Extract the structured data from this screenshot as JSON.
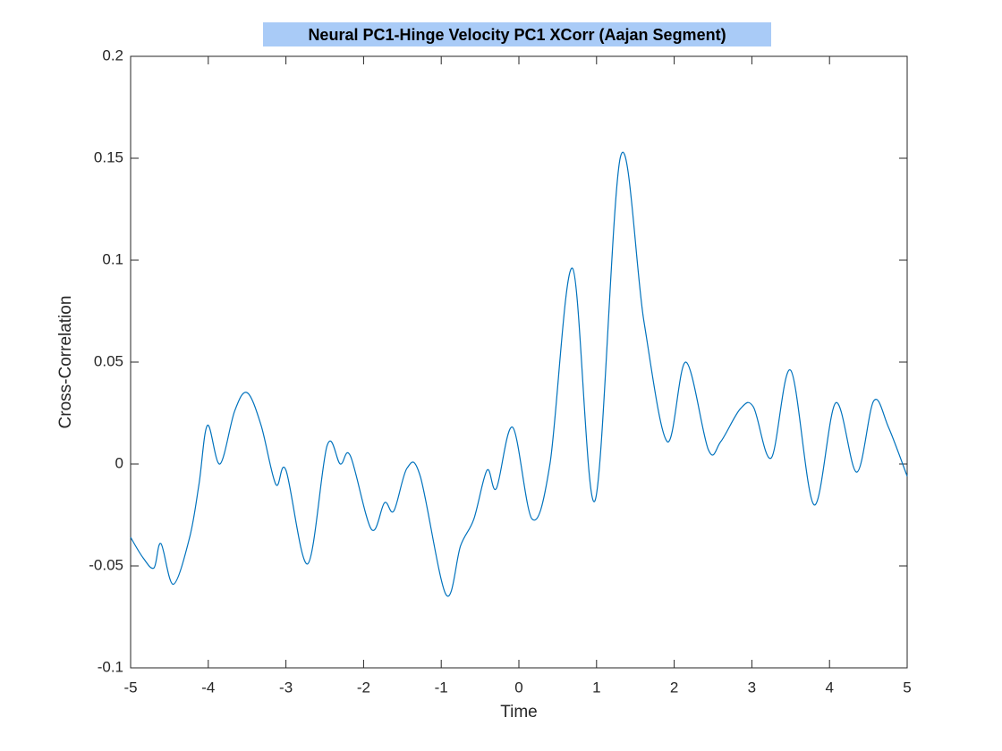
{
  "chart_data": {
    "type": "line",
    "title": "Neural PC1-Hinge Velocity PC1 XCorr (Aajan Segment)",
    "x_label": "Time",
    "y_label": "Cross-Correlation",
    "xlim": [
      -5,
      5
    ],
    "ylim": [
      -0.1,
      0.2
    ],
    "xticks": [
      -5,
      -4,
      -3,
      -2,
      -1,
      0,
      1,
      2,
      3,
      4,
      5
    ],
    "yticks": [
      -0.1,
      -0.05,
      0,
      0.05,
      0.1,
      0.15,
      0.2
    ],
    "grid": false,
    "series": [
      {
        "name": "Cross-Correlation",
        "color": "#0072bd",
        "x": [
          -5,
          -4.84,
          -4.7,
          -4.61,
          -4.45,
          -4.24,
          -4.12,
          -4.01,
          -3.85,
          -3.66,
          -3.5,
          -3.32,
          -3.13,
          -3,
          -2.72,
          -2.47,
          -2.3,
          -2.17,
          -1.9,
          -1.73,
          -1.61,
          -1.44,
          -1.27,
          -0.94,
          -0.75,
          -0.58,
          -0.41,
          -0.29,
          -0.08,
          0.17,
          0.4,
          0.69,
          0.98,
          1.31,
          1.61,
          1.91,
          2.15,
          2.44,
          2.6,
          2.85,
          3.02,
          3.25,
          3.5,
          3.8,
          4.08,
          4.35,
          4.57,
          4.76,
          5
        ],
        "values": [
          -0.036,
          -0.046,
          -0.051,
          -0.039,
          -0.059,
          -0.036,
          -0.01,
          0.019,
          0.0,
          0.026,
          0.035,
          0.019,
          -0.01,
          -0.003,
          -0.049,
          0.009,
          0.0,
          0.004,
          -0.032,
          -0.019,
          -0.023,
          -0.002,
          -0.006,
          -0.064,
          -0.04,
          -0.027,
          -0.003,
          -0.012,
          0.018,
          -0.027,
          0.0,
          0.096,
          -0.018,
          0.151,
          0.07,
          0.011,
          0.05,
          0.007,
          0.011,
          0.027,
          0.028,
          0.003,
          0.046,
          -0.02,
          0.03,
          -0.004,
          0.031,
          0.018,
          -0.006
        ]
      }
    ]
  }
}
